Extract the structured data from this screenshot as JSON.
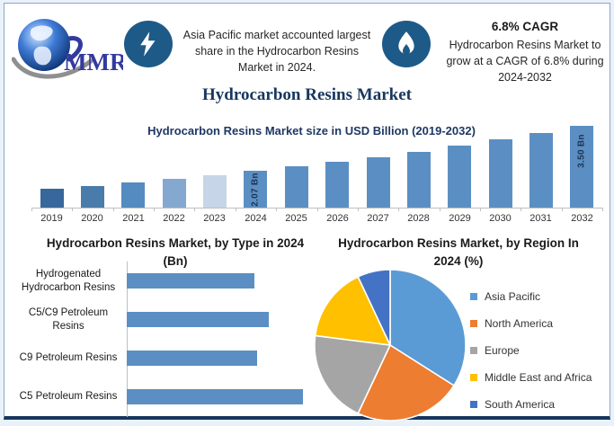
{
  "brand": {
    "logo_text": "MMR"
  },
  "header": {
    "highlight1": {
      "icon": "lightning-icon",
      "text": "Asia Pacific market accounted largest share in the Hydrocarbon Resins Market in 2024."
    },
    "highlight2": {
      "icon": "flame-icon",
      "title": "6.8% CAGR",
      "text": "Hydrocarbon Resins Market to grow at a CAGR of 6.8% during 2024-2032"
    }
  },
  "main_title": "Hydrocarbon Resins Market",
  "colors": {
    "accent_navy": "#17375d",
    "icon_circle": "#1e5a87",
    "bar_blue": "#5b8fc4",
    "axis_gray": "#bfbfbf"
  },
  "chart_data": [
    {
      "type": "bar",
      "title": "Hydrocarbon Resins Market size in USD Billion (2019-2032)",
      "categories": [
        "2019",
        "2020",
        "2021",
        "2022",
        "2023",
        "2024",
        "2025",
        "2026",
        "2027",
        "2028",
        "2029",
        "2030",
        "2031",
        "2032"
      ],
      "values": [
        1.49,
        1.59,
        1.7,
        1.81,
        1.94,
        2.07,
        2.21,
        2.36,
        2.52,
        2.69,
        2.88,
        3.07,
        3.28,
        3.5
      ],
      "unit": "USD Billion",
      "ylim": [
        0.9,
        3.6
      ],
      "grid": false,
      "bar_colors": [
        "#38689b",
        "#4a7cab",
        "#548bc0",
        "#85a8d0",
        "#c7d5e8",
        "#5b8fc4",
        "#5b8fc4",
        "#5b8fc4",
        "#5b8fc4",
        "#5b8fc4",
        "#5b8fc4",
        "#5b8fc4",
        "#5b8fc4",
        "#5b8fc4"
      ],
      "data_labels": {
        "2024": "2.07 Bn",
        "2032": "3.50 Bn"
      }
    },
    {
      "type": "bar",
      "orientation": "horizontal",
      "title": "Hydrocarbon Resins Market, by Type in 2024 (Bn)",
      "categories": [
        "Hydrogenated Hydrocarbon Resins",
        "C5/C9 Petroleum Resins",
        "C9 Petroleum Resins",
        "C5 Petroleum Resins"
      ],
      "values": [
        0.45,
        0.5,
        0.46,
        0.62
      ],
      "xlim": [
        0,
        0.68
      ],
      "bar_color": "#5b8fc4"
    },
    {
      "type": "pie",
      "title": "Hydrocarbon Resins Market, by Region In 2024 (%)",
      "labels": [
        "Asia Pacific",
        "North America",
        "Europe",
        "Middle East and Africa",
        "South America"
      ],
      "values": [
        34,
        23,
        20,
        16,
        7
      ],
      "colors": [
        "#5b9bd5",
        "#ed7d31",
        "#a5a5a5",
        "#ffc000",
        "#4472c4"
      ],
      "legend_position": "right"
    }
  ]
}
